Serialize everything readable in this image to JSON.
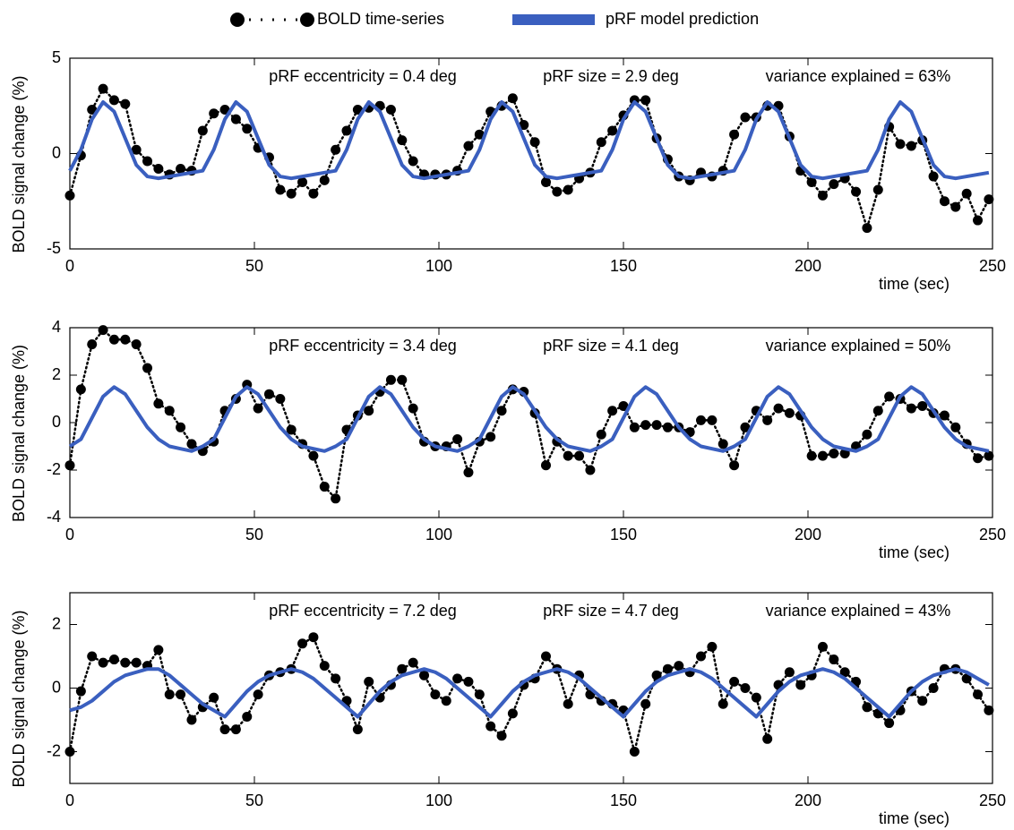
{
  "chart_data": [
    {
      "type": "line",
      "xlabel": "time (sec)",
      "ylabel": "BOLD signal change (%)",
      "annotations": [
        "pRF eccentricity = 0.4 deg",
        "pRF size = 2.9 deg",
        "variance explained = 63%"
      ],
      "xlim": [
        0,
        250
      ],
      "xticks": [
        0,
        50,
        100,
        150,
        200,
        250
      ],
      "ylim": [
        -5,
        5
      ],
      "yticks": [
        -5,
        0,
        5
      ],
      "x": [
        0,
        3,
        6,
        9,
        12,
        15,
        18,
        21,
        24,
        27,
        30,
        33,
        36,
        39,
        42,
        45,
        48,
        51,
        54,
        57,
        60,
        63,
        66,
        69,
        72,
        75,
        78,
        81,
        84,
        87,
        90,
        93,
        96,
        99,
        102,
        105,
        108,
        111,
        114,
        117,
        120,
        123,
        126,
        129,
        132,
        135,
        138,
        141,
        144,
        147,
        150,
        153,
        156,
        159,
        162,
        165,
        168,
        171,
        174,
        177,
        180,
        183,
        186,
        189,
        192,
        195,
        198,
        201,
        204,
        207,
        210,
        213,
        216,
        219,
        222,
        225,
        228,
        231,
        234,
        237,
        240,
        243,
        246,
        249
      ],
      "series": [
        {
          "name": "BOLD time-series",
          "color": "#000000",
          "marker": "o",
          "linestyle": "dotted",
          "values": [
            -2.2,
            -0.1,
            2.3,
            3.4,
            2.8,
            2.6,
            0.2,
            -0.4,
            -0.8,
            -1.1,
            -0.8,
            -0.9,
            1.2,
            2.1,
            2.3,
            1.8,
            1.3,
            0.3,
            -0.2,
            -1.9,
            -2.1,
            -1.5,
            -2.1,
            -1.4,
            0.2,
            1.2,
            2.3,
            2.4,
            2.5,
            2.3,
            0.7,
            -0.4,
            -1.1,
            -1.1,
            -1.1,
            -0.9,
            0.4,
            1.0,
            2.2,
            2.5,
            2.9,
            1.5,
            0.6,
            -1.5,
            -2.0,
            -1.9,
            -1.3,
            -1.0,
            0.6,
            1.2,
            2.0,
            2.8,
            2.8,
            0.8,
            -0.3,
            -1.2,
            -1.4,
            -1.0,
            -1.2,
            -0.9,
            1.0,
            1.9,
            1.9,
            2.5,
            2.5,
            0.9,
            -0.9,
            -1.5,
            -2.2,
            -1.6,
            -1.3,
            -2.0,
            -3.9,
            -1.9,
            1.4,
            0.5,
            0.4,
            0.7,
            -1.2,
            -2.5,
            -2.8,
            -2.1,
            -3.5,
            -2.4
          ]
        },
        {
          "name": "pRF model prediction",
          "color": "#3a5fbf",
          "linestyle": "solid",
          "values": [
            -0.9,
            0.2,
            1.8,
            2.7,
            2.2,
            0.8,
            -0.6,
            -1.2,
            -1.3,
            -1.2,
            -1.1,
            -1.0,
            -0.9,
            0.2,
            1.8,
            2.7,
            2.2,
            0.8,
            -0.6,
            -1.2,
            -1.3,
            -1.2,
            -1.1,
            -1.0,
            -0.9,
            0.2,
            1.8,
            2.7,
            2.2,
            0.8,
            -0.6,
            -1.2,
            -1.3,
            -1.2,
            -1.1,
            -1.0,
            -0.9,
            0.2,
            1.8,
            2.7,
            2.2,
            0.8,
            -0.6,
            -1.2,
            -1.3,
            -1.2,
            -1.1,
            -1.0,
            -0.9,
            0.2,
            1.8,
            2.7,
            2.2,
            0.8,
            -0.6,
            -1.2,
            -1.3,
            -1.2,
            -1.1,
            -1.0,
            -0.9,
            0.2,
            1.8,
            2.7,
            2.2,
            0.8,
            -0.6,
            -1.2,
            -1.3,
            -1.2,
            -1.1,
            -1.0,
            -0.9,
            0.2,
            1.8,
            2.7,
            2.2,
            0.8,
            -0.6,
            -1.2,
            -1.3,
            -1.2,
            -1.1,
            -1.0
          ]
        }
      ]
    },
    {
      "type": "line",
      "xlabel": "time (sec)",
      "ylabel": "BOLD signal change (%)",
      "annotations": [
        "pRF eccentricity = 3.4 deg",
        "pRF size = 4.1 deg",
        "variance explained = 50%"
      ],
      "xlim": [
        0,
        250
      ],
      "xticks": [
        0,
        50,
        100,
        150,
        200,
        250
      ],
      "ylim": [
        -4,
        4
      ],
      "yticks": [
        -4,
        -2,
        0,
        2,
        4
      ],
      "x": [
        0,
        3,
        6,
        9,
        12,
        15,
        18,
        21,
        24,
        27,
        30,
        33,
        36,
        39,
        42,
        45,
        48,
        51,
        54,
        57,
        60,
        63,
        66,
        69,
        72,
        75,
        78,
        81,
        84,
        87,
        90,
        93,
        96,
        99,
        102,
        105,
        108,
        111,
        114,
        117,
        120,
        123,
        126,
        129,
        132,
        135,
        138,
        141,
        144,
        147,
        150,
        153,
        156,
        159,
        162,
        165,
        168,
        171,
        174,
        177,
        180,
        183,
        186,
        189,
        192,
        195,
        198,
        201,
        204,
        207,
        210,
        213,
        216,
        219,
        222,
        225,
        228,
        231,
        234,
        237,
        240,
        243,
        246,
        249
      ],
      "series": [
        {
          "name": "BOLD time-series",
          "color": "#000000",
          "marker": "o",
          "linestyle": "dotted",
          "values": [
            -1.8,
            1.4,
            3.3,
            3.9,
            3.5,
            3.5,
            3.3,
            2.3,
            0.8,
            0.5,
            -0.2,
            -0.9,
            -1.2,
            -0.8,
            0.5,
            1.0,
            1.6,
            0.6,
            1.2,
            1.0,
            -0.3,
            -0.9,
            -1.4,
            -2.7,
            -3.2,
            -0.3,
            0.3,
            0.5,
            1.3,
            1.8,
            1.8,
            0.6,
            -0.8,
            -1.0,
            -1.0,
            -0.7,
            -2.1,
            -0.8,
            -0.6,
            0.5,
            1.4,
            1.3,
            0.4,
            -1.8,
            -0.8,
            -1.4,
            -1.4,
            -2.0,
            -0.5,
            0.5,
            0.7,
            -0.2,
            -0.1,
            -0.1,
            -0.2,
            -0.2,
            -0.4,
            0.1,
            0.1,
            -0.9,
            -1.8,
            -0.2,
            0.5,
            0.1,
            0.6,
            0.4,
            0.3,
            -1.4,
            -1.4,
            -1.3,
            -1.3,
            -1.0,
            -0.5,
            0.5,
            1.1,
            1.0,
            0.6,
            0.7,
            0.4,
            0.3,
            -0.2,
            -0.9,
            -1.5,
            -1.4
          ]
        },
        {
          "name": "pRF model prediction",
          "color": "#3a5fbf",
          "linestyle": "solid",
          "values": [
            -1.0,
            -0.7,
            0.2,
            1.1,
            1.5,
            1.2,
            0.5,
            -0.2,
            -0.7,
            -1.0,
            -1.1,
            -1.2,
            -1.0,
            -0.7,
            0.2,
            1.1,
            1.5,
            1.2,
            0.5,
            -0.2,
            -0.7,
            -1.0,
            -1.1,
            -1.2,
            -1.0,
            -0.7,
            0.2,
            1.1,
            1.5,
            1.2,
            0.5,
            -0.2,
            -0.7,
            -1.0,
            -1.1,
            -1.2,
            -1.0,
            -0.7,
            0.2,
            1.1,
            1.5,
            1.2,
            0.5,
            -0.2,
            -0.7,
            -1.0,
            -1.1,
            -1.2,
            -1.0,
            -0.7,
            0.2,
            1.1,
            1.5,
            1.2,
            0.5,
            -0.2,
            -0.7,
            -1.0,
            -1.1,
            -1.2,
            -1.0,
            -0.7,
            0.2,
            1.1,
            1.5,
            1.2,
            0.5,
            -0.2,
            -0.7,
            -1.0,
            -1.1,
            -1.2,
            -1.0,
            -0.7,
            0.2,
            1.1,
            1.5,
            1.2,
            0.5,
            -0.2,
            -0.7,
            -1.0,
            -1.1,
            -1.2
          ]
        }
      ]
    },
    {
      "type": "line",
      "xlabel": "time (sec)",
      "ylabel": "BOLD signal change (%)",
      "annotations": [
        "pRF eccentricity = 7.2 deg",
        "pRF size = 4.7 deg",
        "variance explained = 43%"
      ],
      "xlim": [
        0,
        250
      ],
      "xticks": [
        0,
        50,
        100,
        150,
        200,
        250
      ],
      "ylim": [
        -3,
        3
      ],
      "yticks": [
        -2,
        0,
        2
      ],
      "x": [
        0,
        3,
        6,
        9,
        12,
        15,
        18,
        21,
        24,
        27,
        30,
        33,
        36,
        39,
        42,
        45,
        48,
        51,
        54,
        57,
        60,
        63,
        66,
        69,
        72,
        75,
        78,
        81,
        84,
        87,
        90,
        93,
        96,
        99,
        102,
        105,
        108,
        111,
        114,
        117,
        120,
        123,
        126,
        129,
        132,
        135,
        138,
        141,
        144,
        147,
        150,
        153,
        156,
        159,
        162,
        165,
        168,
        171,
        174,
        177,
        180,
        183,
        186,
        189,
        192,
        195,
        198,
        201,
        204,
        207,
        210,
        213,
        216,
        219,
        222,
        225,
        228,
        231,
        234,
        237,
        240,
        243,
        246,
        249
      ],
      "series": [
        {
          "name": "BOLD time-series",
          "color": "#000000",
          "marker": "o",
          "linestyle": "dotted",
          "values": [
            -2.0,
            -0.1,
            1.0,
            0.8,
            0.9,
            0.8,
            0.8,
            0.7,
            1.2,
            -0.2,
            -0.2,
            -1.0,
            -0.6,
            -0.3,
            -1.3,
            -1.3,
            -0.9,
            -0.2,
            0.4,
            0.5,
            0.6,
            1.4,
            1.6,
            0.7,
            0.3,
            -0.4,
            -1.3,
            0.2,
            -0.3,
            0.1,
            0.6,
            0.8,
            0.4,
            -0.2,
            -0.4,
            0.3,
            0.2,
            -0.2,
            -1.2,
            -1.5,
            -0.8,
            0.1,
            0.3,
            1.0,
            0.6,
            -0.5,
            0.4,
            -0.2,
            -0.4,
            -0.5,
            -0.7,
            -2.0,
            -0.5,
            0.4,
            0.6,
            0.7,
            0.5,
            1.0,
            1.3,
            -0.5,
            0.2,
            0.0,
            -0.3,
            -1.6,
            0.1,
            0.5,
            0.1,
            0.4,
            1.3,
            0.9,
            0.5,
            0.2,
            -0.6,
            -0.8,
            -1.1,
            -0.7,
            -0.1,
            -0.4,
            0.0,
            0.6,
            0.6,
            0.3,
            -0.2,
            -0.7
          ]
        },
        {
          "name": "pRF model prediction",
          "color": "#3a5fbf",
          "linestyle": "solid",
          "values": [
            -0.7,
            -0.6,
            -0.4,
            -0.1,
            0.2,
            0.4,
            0.5,
            0.6,
            0.6,
            0.4,
            0.1,
            -0.2,
            -0.5,
            -0.7,
            -0.9,
            -0.5,
            -0.1,
            0.2,
            0.4,
            0.5,
            0.6,
            0.5,
            0.3,
            0.0,
            -0.3,
            -0.6,
            -0.9,
            -0.5,
            -0.1,
            0.2,
            0.4,
            0.5,
            0.6,
            0.5,
            0.3,
            0.0,
            -0.3,
            -0.6,
            -0.9,
            -0.5,
            -0.1,
            0.2,
            0.4,
            0.5,
            0.6,
            0.5,
            0.3,
            0.0,
            -0.3,
            -0.6,
            -0.9,
            -0.5,
            -0.1,
            0.2,
            0.4,
            0.5,
            0.6,
            0.5,
            0.3,
            0.0,
            -0.3,
            -0.6,
            -0.9,
            -0.5,
            -0.1,
            0.2,
            0.4,
            0.5,
            0.6,
            0.5,
            0.3,
            0.0,
            -0.3,
            -0.6,
            -0.9,
            -0.5,
            -0.1,
            0.2,
            0.4,
            0.5,
            0.6,
            0.5,
            0.3,
            0.1
          ]
        }
      ]
    }
  ]
}
